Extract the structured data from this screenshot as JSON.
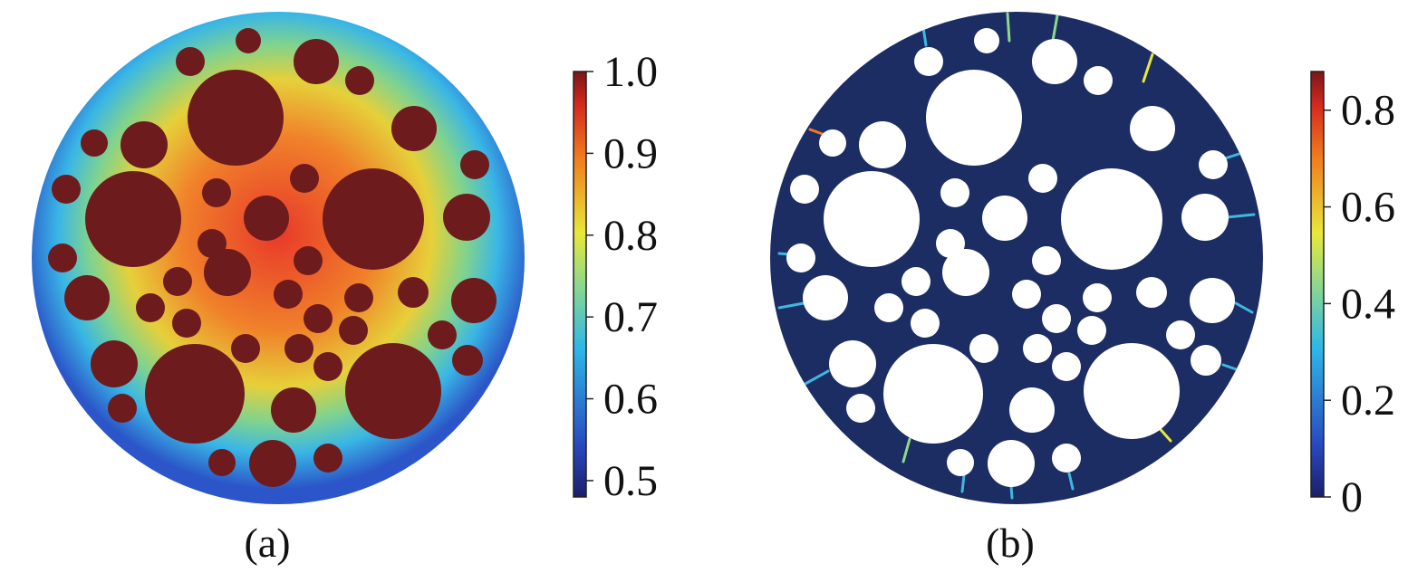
{
  "panels": [
    {
      "id": "a",
      "caption": "(a)",
      "colorbar_ticks": [
        "1.0",
        "0.9",
        "0.8",
        "0.7",
        "0.6",
        "0.5"
      ],
      "colorbar_range": [
        0.48,
        1.0
      ],
      "colors": {
        "background": "#2f57c8",
        "inclusion": "#6e1b1d"
      }
    },
    {
      "id": "b",
      "caption": "(b)",
      "colorbar_ticks": [
        "0.8",
        "0.6",
        "0.4",
        "0.2",
        "0"
      ],
      "colorbar_range": [
        0.0,
        0.88
      ],
      "colors": {
        "background": "#1c2d63",
        "inclusion": "#ffffff"
      }
    }
  ],
  "colormap": "jet"
}
